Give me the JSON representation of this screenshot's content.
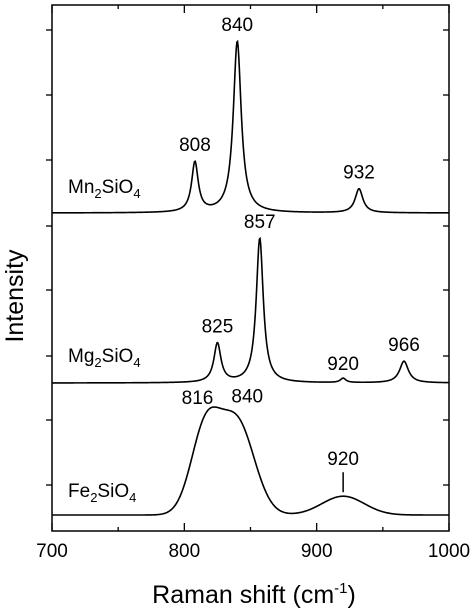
{
  "chart_data": {
    "type": "line",
    "xlabel": "Raman shift (cm",
    "xlabel_sup": "-1",
    "xlabel_tail": ")",
    "ylabel": "Intensity",
    "xlim": [
      700,
      1000
    ],
    "xticks": [
      "700",
      "800",
      "900",
      "1000"
    ],
    "grid": false,
    "series": [
      {
        "name": "Mn2SiO4",
        "name_parts": [
          "Mn",
          "2",
          "SiO",
          "4"
        ],
        "peaks": [
          {
            "x": 808,
            "label": "808",
            "height": 0.29,
            "width": 3.0,
            "shape": "lorentz"
          },
          {
            "x": 840,
            "label": "840",
            "height": 1.0,
            "width": 3.6,
            "shape": "lorentz"
          },
          {
            "x": 932,
            "label": "932",
            "height": 0.14,
            "width": 3.5,
            "shape": "lorentz"
          }
        ]
      },
      {
        "name": "Mg2SiO4",
        "name_parts": [
          "Mg",
          "2",
          "SiO",
          "4"
        ],
        "peaks": [
          {
            "x": 825,
            "label": "825",
            "height": 0.27,
            "width": 3.2,
            "shape": "lorentz"
          },
          {
            "x": 857,
            "label": "857",
            "height": 1.0,
            "width": 3.2,
            "shape": "lorentz"
          },
          {
            "x": 920,
            "label": "920",
            "height": 0.03,
            "width": 2.5,
            "shape": "lorentz"
          },
          {
            "x": 966,
            "label": "966",
            "height": 0.15,
            "width": 4.0,
            "shape": "lorentz"
          }
        ]
      },
      {
        "name": "Fe2SiO4",
        "name_parts": [
          "Fe",
          "2",
          "SiO",
          "4"
        ],
        "peaks": [
          {
            "x": 816,
            "label": "816",
            "height": 0.72,
            "width": 11,
            "shape": "gauss"
          },
          {
            "x": 840,
            "label": "840",
            "height": 0.78,
            "width": 13,
            "shape": "gauss"
          },
          {
            "x": 920,
            "label": "920",
            "height": 0.16,
            "width": 16,
            "shape": "gauss"
          }
        ]
      }
    ]
  }
}
